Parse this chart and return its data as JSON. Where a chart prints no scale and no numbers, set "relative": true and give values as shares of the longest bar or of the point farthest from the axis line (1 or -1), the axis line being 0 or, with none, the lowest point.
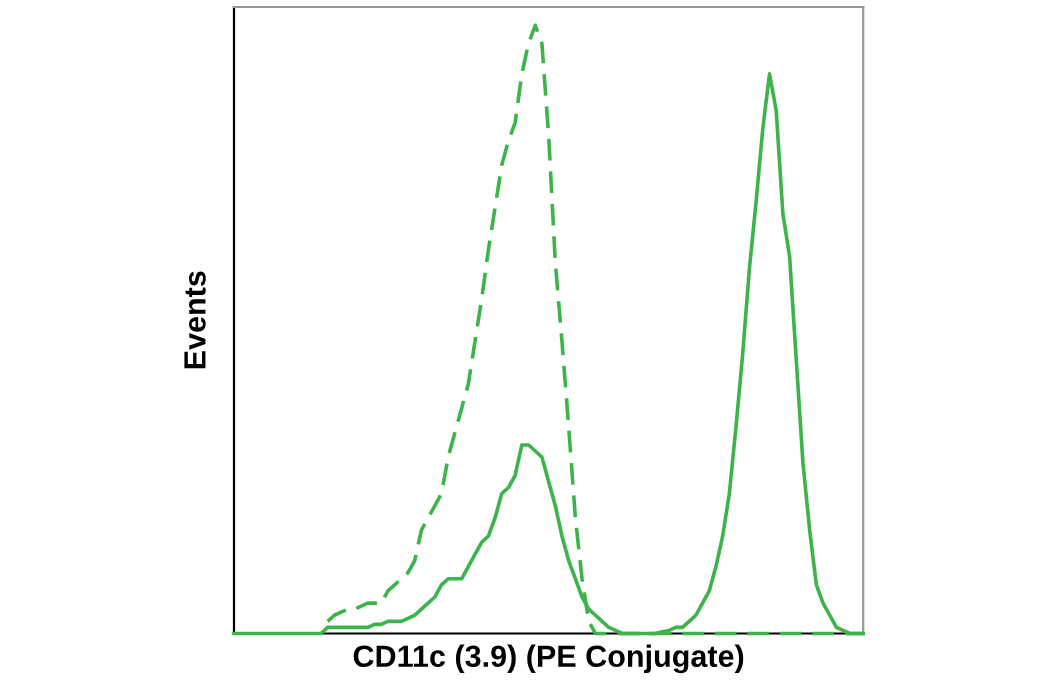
{
  "chart_data": {
    "type": "line",
    "relative": true,
    "xlabel": "CD11c (3.9) (PE Conjugate)",
    "ylabel": "Events",
    "legend": false,
    "categories": [
      null,
      null,
      null,
      null,
      null,
      null,
      null,
      null,
      null,
      null,
      null,
      null,
      null,
      null,
      null,
      null,
      null,
      null,
      null,
      null,
      null,
      null,
      null,
      null,
      null,
      null,
      null,
      null,
      null,
      null,
      null,
      null,
      null,
      null,
      null,
      null,
      null,
      null,
      null,
      null,
      null,
      null,
      null,
      null,
      null,
      null,
      null,
      null,
      null,
      null,
      null,
      null,
      null,
      null,
      null,
      null,
      null,
      null,
      null,
      null,
      null,
      null,
      null,
      null,
      null,
      null,
      null,
      null,
      null,
      null,
      null,
      null,
      null,
      null,
      null,
      null,
      null,
      null,
      null,
      null,
      null,
      null,
      null,
      null,
      null,
      null,
      null,
      null,
      null,
      null,
      null,
      null,
      null,
      null,
      null
    ],
    "series": [
      {
        "color": "#3cb44b",
        "line_style": "dashed",
        "values": [
          null,
          null,
          null,
          null,
          null,
          null,
          null,
          null,
          null,
          null,
          null,
          null,
          null,
          null,
          0.02,
          0.03,
          0.035,
          0.04,
          0.04,
          0.045,
          0.05,
          0.05,
          0.05,
          0.07,
          0.08,
          0.09,
          0.1,
          0.12,
          0.17,
          0.19,
          0.21,
          0.23,
          0.29,
          0.33,
          0.37,
          0.41,
          0.48,
          0.55,
          0.63,
          0.7,
          0.77,
          0.81,
          0.84,
          0.92,
          0.97,
          1,
          0.97,
          0.82,
          0.61,
          0.48,
          0.34,
          0.19,
          0.09,
          0.02,
          0,
          0,
          0,
          0,
          0,
          0,
          0,
          0,
          0,
          0,
          0,
          0,
          0,
          0,
          0,
          0,
          0,
          0,
          0,
          0,
          0,
          0,
          0,
          0,
          0,
          0,
          0,
          0,
          0,
          0,
          0,
          0,
          0,
          0,
          0,
          0,
          0,
          0,
          0,
          0,
          0
        ]
      },
      {
        "color": "#3cb44b",
        "line_style": "solid",
        "values": [
          0,
          0,
          0,
          0,
          0,
          0,
          0,
          0,
          0,
          0,
          0,
          0,
          0,
          0,
          0.01,
          0.01,
          0.01,
          0.01,
          0.01,
          0.01,
          0.01,
          0.015,
          0.015,
          0.02,
          0.02,
          0.02,
          0.025,
          0.03,
          0.04,
          0.05,
          0.06,
          0.08,
          0.09,
          0.09,
          0.09,
          0.11,
          0.13,
          0.15,
          0.16,
          0.19,
          0.23,
          0.24,
          0.26,
          0.31,
          0.31,
          0.3,
          0.29,
          0.25,
          0.21,
          0.16,
          0.12,
          0.09,
          0.06,
          0.04,
          0.03,
          0.02,
          0.01,
          0.005,
          0,
          0,
          0,
          0,
          0,
          0,
          0.003,
          0.005,
          0.01,
          0.01,
          0.02,
          0.03,
          0.05,
          0.07,
          0.11,
          0.16,
          0.23,
          0.34,
          0.46,
          0.6,
          0.71,
          0.83,
          0.92,
          0.86,
          0.69,
          0.62,
          0.45,
          0.28,
          0.17,
          0.08,
          0.05,
          0.03,
          0.01,
          0.005,
          0,
          0,
          0
        ]
      }
    ]
  }
}
